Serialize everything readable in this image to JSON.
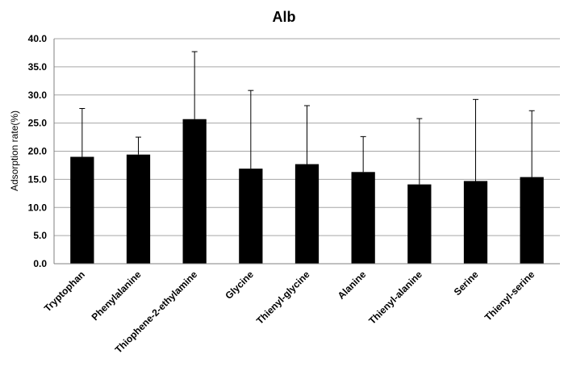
{
  "chart_data": {
    "type": "bar",
    "title": "Alb",
    "xlabel": "",
    "ylabel": "Adsorption rate(%)",
    "ylim": [
      0,
      40
    ],
    "yticks": [
      "0.0",
      "5.0",
      "10.0",
      "15.0",
      "20.0",
      "25.0",
      "30.0",
      "35.0",
      "40.0"
    ],
    "grid": true,
    "legend": "none",
    "bar_color": "#000000",
    "gridline_color": "#a6a6a6",
    "categories": [
      "Tryptophan",
      "Phenylalanine",
      "Thiophene-2-ethylamine",
      "Glycine",
      "Thienyl-glycine",
      "Alanine",
      "Thienyl-alanine",
      "Serine",
      "Thienyl-serine"
    ],
    "values": [
      19.0,
      19.4,
      25.7,
      16.9,
      17.7,
      16.3,
      14.1,
      14.7,
      15.4
    ],
    "error_upper": [
      8.6,
      3.1,
      12.0,
      13.9,
      10.4,
      6.3,
      11.7,
      14.5,
      11.8
    ]
  }
}
